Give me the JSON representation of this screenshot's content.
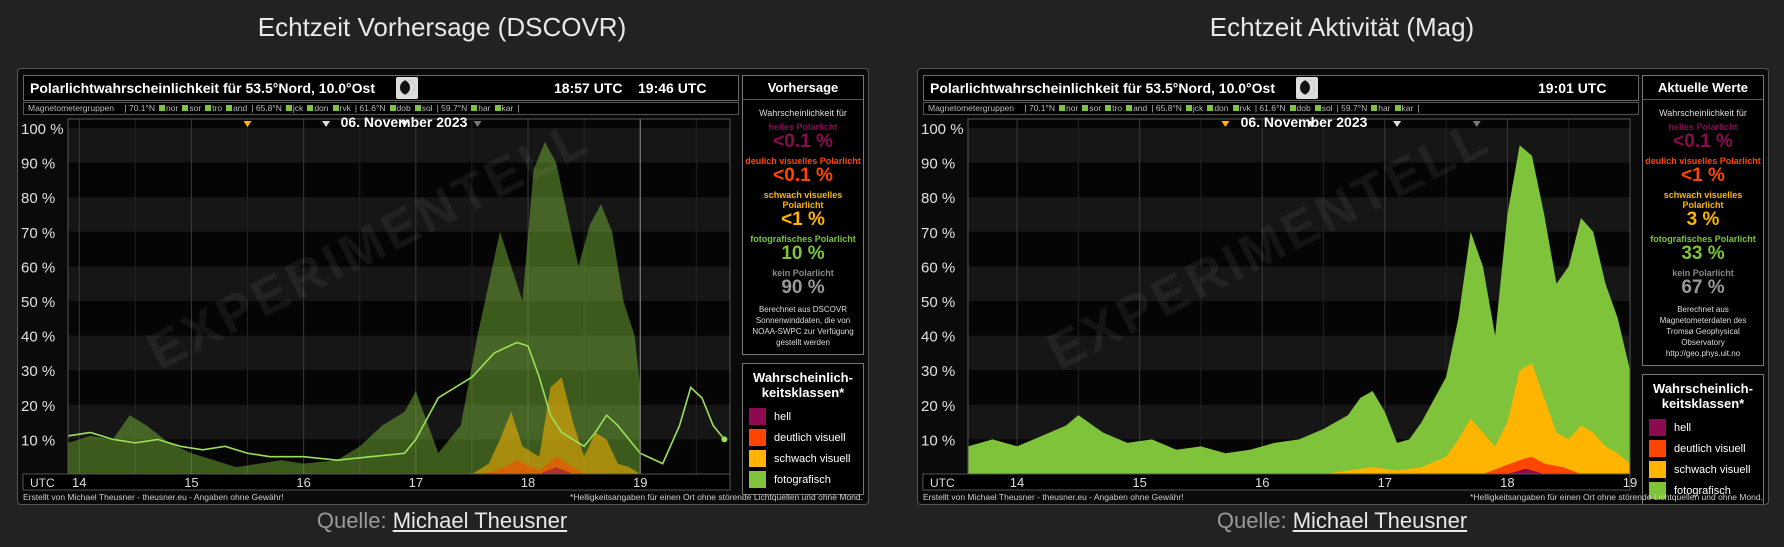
{
  "panels": [
    {
      "title": "Echtzeit Vorhersage (DSCOVR)",
      "location": "Polarlichtwahrscheinlichkeit für  53.5°Nord, 10.0°Ost",
      "time1": "18:57 UTC",
      "time2": "19:46 UTC",
      "magnetometer_groups": "Magnetometergruppen",
      "date": "06. November 2023",
      "side_header": "Vorhersage",
      "side_intro": "Wahrscheinlichkeit für",
      "classes": [
        {
          "label": "helles Polarlicht",
          "value": "<0.1 %",
          "color": "#8b0a50"
        },
        {
          "label": "deulich visuelles Polarlicht",
          "value": "<0.1 %",
          "color": "#ff4500"
        },
        {
          "label": "schwach visuelles Polarlicht",
          "value": "<1 %",
          "color": "#ffb400"
        },
        {
          "label": "fotografisches Polarlicht",
          "value": "10 %",
          "color": "#7ec33a"
        },
        {
          "label": "kein Polarlicht",
          "value": "90 %",
          "color": "#888888"
        }
      ],
      "side_note": "Berechnet aus DSCOVR Sonnenwinddaten, die von NOAA-SWPC zur Verfügung gestellt werden",
      "legend_title": "Wahrscheinlich-keitsklassen*",
      "footer_left": "Erstellt von Michael Theusner - theusner.eu - Angaben ohne Gewähr!",
      "footer_right": "*Helligkeitsangaben für einen Ort ohne störende Lichtquellen und ohne Mond.",
      "source_label": "Quelle:",
      "source_link": "Michael Theusner"
    },
    {
      "title": "Echtzeit Aktivität (Mag)",
      "location": "Polarlichtwahrscheinlichkeit für  53.5°Nord, 10.0°Ost",
      "time1": "19:01 UTC",
      "magnetometer_groups": "Magnetometergruppen",
      "date": "06. November 2023",
      "side_header": "Aktuelle Werte",
      "side_intro": "Wahrscheinlichkeit für",
      "classes": [
        {
          "label": "helles Polarlicht",
          "value": "<0.1 %",
          "color": "#8b0a50"
        },
        {
          "label": "deulich visuelles Polarlicht",
          "value": "<1 %",
          "color": "#ff4500"
        },
        {
          "label": "schwach visuelles Polarlicht",
          "value": "3 %",
          "color": "#ffb400"
        },
        {
          "label": "fotografisches Polarlicht",
          "value": "33 %",
          "color": "#7ec33a"
        },
        {
          "label": "kein Polarlicht",
          "value": "67 %",
          "color": "#888888"
        }
      ],
      "side_note": "Berechnet aus Magnetometerdaten des Tromsø Geophysical Observatory http://geo.phys.uit.no",
      "legend_title": "Wahrscheinlich-keitsklassen*",
      "footer_left": "Erstellt von Michael Theusner - theusner.eu - Angaben ohne Gewähr!",
      "footer_right": "*Helligkeitsangaben für einen Ort ohne störende Lichtquellen und ohne Mond.",
      "source_label": "Quelle:",
      "source_link": "Michael Theusner"
    }
  ],
  "mag_groups": [
    {
      "lat": "70.1°N",
      "stations": [
        "nor",
        "sor",
        "tro",
        "and"
      ]
    },
    {
      "lat": "65.8°N",
      "stations": [
        "jck",
        "don",
        "rvk"
      ]
    },
    {
      "lat": "61.6°N",
      "stations": [
        "dob",
        "sol"
      ]
    },
    {
      "lat": "59.7°N",
      "stations": [
        "har",
        "kar"
      ]
    }
  ],
  "legend_items": [
    {
      "label": "hell",
      "color": "#8b0a50"
    },
    {
      "label": "deutlich visuell",
      "color": "#ff4500"
    },
    {
      "label": "schwach visuell",
      "color": "#ffb400"
    },
    {
      "label": "fotografisch",
      "color": "#7ec33a"
    }
  ],
  "watermark": "EXPERIMENTELL",
  "chart_data": [
    {
      "type": "area",
      "x_unit": "UTC hour",
      "xlim": [
        13.9,
        19.8
      ],
      "ylim": [
        0,
        100
      ],
      "yticks": [
        "100 %",
        "90 %",
        "80 %",
        "70 %",
        "60 %",
        "50 %",
        "40 %",
        "30 %",
        "20 %",
        "10 %"
      ],
      "xlabel": "UTC",
      "xticks": [
        "14",
        "15",
        "16",
        "17",
        "18",
        "19"
      ],
      "forecast_start": 19.0,
      "series": [
        {
          "name": "fotografisch",
          "color": "#7ec33a",
          "x": [
            13.9,
            14.1,
            14.3,
            14.45,
            14.6,
            14.8,
            15.0,
            15.2,
            15.4,
            15.6,
            15.8,
            16.0,
            16.3,
            16.5,
            16.7,
            16.9,
            17.0,
            17.1,
            17.2,
            17.4,
            17.55,
            17.65,
            17.75,
            17.85,
            17.95,
            18.05,
            18.15,
            18.25,
            18.35,
            18.45,
            18.55,
            18.65,
            18.75,
            18.85,
            18.95,
            19.0
          ],
          "y": [
            9,
            11,
            10,
            17,
            14,
            9,
            6,
            4,
            2,
            3,
            4,
            3,
            4,
            8,
            14,
            18,
            24,
            15,
            6,
            14,
            40,
            55,
            70,
            60,
            50,
            88,
            96,
            90,
            75,
            60,
            72,
            78,
            70,
            50,
            40,
            25
          ]
        },
        {
          "name": "schwach visuell",
          "color": "#ffb400",
          "x": [
            13.9,
            17.5,
            17.65,
            17.75,
            17.85,
            17.95,
            18.1,
            18.2,
            18.3,
            18.4,
            18.5,
            18.6,
            18.7,
            18.8,
            18.9,
            19.0
          ],
          "y": [
            0,
            0,
            3,
            10,
            18,
            8,
            5,
            25,
            28,
            15,
            5,
            12,
            10,
            3,
            2,
            0
          ]
        },
        {
          "name": "deutlich visuell",
          "color": "#ff4500",
          "x": [
            13.9,
            17.6,
            17.8,
            17.9,
            18.1,
            18.25,
            18.4,
            18.5,
            19.0
          ],
          "y": [
            0,
            0,
            2,
            4,
            1,
            5,
            2,
            0,
            0
          ]
        },
        {
          "name": "hell",
          "color": "#8b0a50",
          "x": [
            13.9,
            18.1,
            18.25,
            18.4,
            19.0
          ],
          "y": [
            0,
            0,
            2,
            0,
            0
          ]
        },
        {
          "name": "",
          "color": "#9be05a",
          "x": [
            13.9,
            14.1,
            14.3,
            14.5,
            14.7,
            14.9,
            15.1,
            15.3,
            15.5,
            15.7,
            16.0,
            16.3,
            16.6,
            16.9,
            17.0,
            17.2,
            17.5,
            17.7,
            17.9,
            18.0,
            18.1,
            18.2,
            18.3,
            18.5,
            18.6,
            18.7,
            18.8,
            19.0,
            19.2,
            19.35,
            19.45,
            19.55,
            19.65,
            19.75
          ],
          "y": [
            11,
            12,
            10,
            9,
            10,
            8,
            7,
            8,
            6,
            5,
            5,
            4,
            5,
            6,
            10,
            22,
            28,
            35,
            38,
            37,
            28,
            17,
            12,
            8,
            12,
            17,
            14,
            6,
            3,
            14,
            25,
            22,
            14,
            10
          ]
        }
      ]
    },
    {
      "type": "area",
      "x_unit": "UTC hour",
      "xlim": [
        13.6,
        19.0
      ],
      "ylim": [
        0,
        100
      ],
      "yticks": [
        "100 %",
        "90 %",
        "80 %",
        "70 %",
        "60 %",
        "50 %",
        "40 %",
        "30 %",
        "20 %",
        "10 %"
      ],
      "xlabel": "UTC",
      "xticks": [
        "14",
        "15",
        "16",
        "17",
        "18",
        "19"
      ],
      "series": [
        {
          "name": "fotografisch",
          "color": "#7ec33a",
          "x": [
            13.6,
            13.8,
            14.0,
            14.2,
            14.4,
            14.5,
            14.7,
            14.9,
            15.1,
            15.3,
            15.5,
            15.7,
            15.9,
            16.1,
            16.3,
            16.5,
            16.7,
            16.8,
            16.9,
            17.0,
            17.1,
            17.2,
            17.3,
            17.5,
            17.6,
            17.7,
            17.8,
            17.9,
            18.0,
            18.1,
            18.2,
            18.3,
            18.4,
            18.5,
            18.6,
            18.7,
            18.8,
            18.9,
            19.0
          ],
          "y": [
            8,
            10,
            8,
            11,
            14,
            17,
            12,
            9,
            10,
            7,
            8,
            6,
            7,
            9,
            10,
            13,
            17,
            22,
            24,
            18,
            9,
            10,
            15,
            28,
            45,
            70,
            60,
            40,
            75,
            95,
            92,
            75,
            55,
            60,
            74,
            70,
            55,
            45,
            30
          ]
        },
        {
          "name": "schwach visuell",
          "color": "#ffb400",
          "x": [
            13.6,
            16.5,
            16.9,
            17.1,
            17.3,
            17.5,
            17.6,
            17.7,
            17.8,
            17.9,
            18.0,
            18.1,
            18.2,
            18.3,
            18.4,
            18.5,
            18.6,
            18.7,
            18.8,
            18.9,
            19.0
          ],
          "y": [
            0,
            0,
            2,
            1,
            2,
            5,
            10,
            16,
            12,
            8,
            15,
            30,
            32,
            22,
            12,
            10,
            14,
            12,
            8,
            6,
            3
          ]
        },
        {
          "name": "deutlich visuell",
          "color": "#ff4500",
          "x": [
            13.6,
            17.8,
            17.95,
            18.1,
            18.2,
            18.3,
            18.45,
            18.6,
            19.0
          ],
          "y": [
            0,
            0,
            2,
            4,
            5,
            3,
            2,
            0,
            0
          ]
        },
        {
          "name": "hell",
          "color": "#8b0a50",
          "x": [
            13.6,
            18.0,
            18.15,
            18.3,
            19.0
          ],
          "y": [
            0,
            0,
            1.5,
            0,
            0
          ]
        }
      ]
    }
  ]
}
